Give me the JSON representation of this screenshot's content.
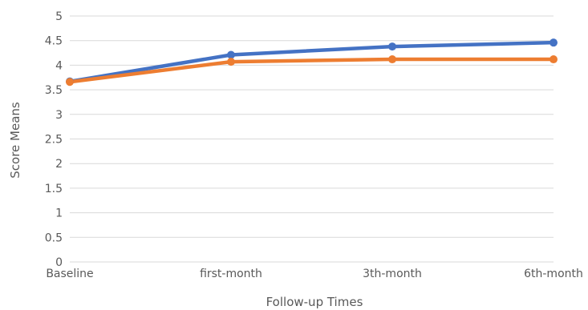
{
  "chart_data": {
    "type": "line",
    "title": "",
    "xlabel": "Follow-up Times",
    "ylabel": "Score Means",
    "categories": [
      "Baseline",
      "first-month",
      "3th-month",
      "6th-month"
    ],
    "ylim": [
      0,
      5
    ],
    "yticks": [
      "0",
      "0.5",
      "1",
      "1.5",
      "2",
      "2.5",
      "3",
      "3.5",
      "4",
      "4.5",
      "5"
    ],
    "grid": true,
    "legend": "none",
    "series": [
      {
        "color": "#4472c4",
        "values": [
          3.67,
          4.21,
          4.38,
          4.46
        ]
      },
      {
        "color": "#ed7d31",
        "values": [
          3.66,
          4.07,
          4.12,
          4.12
        ]
      }
    ]
  }
}
